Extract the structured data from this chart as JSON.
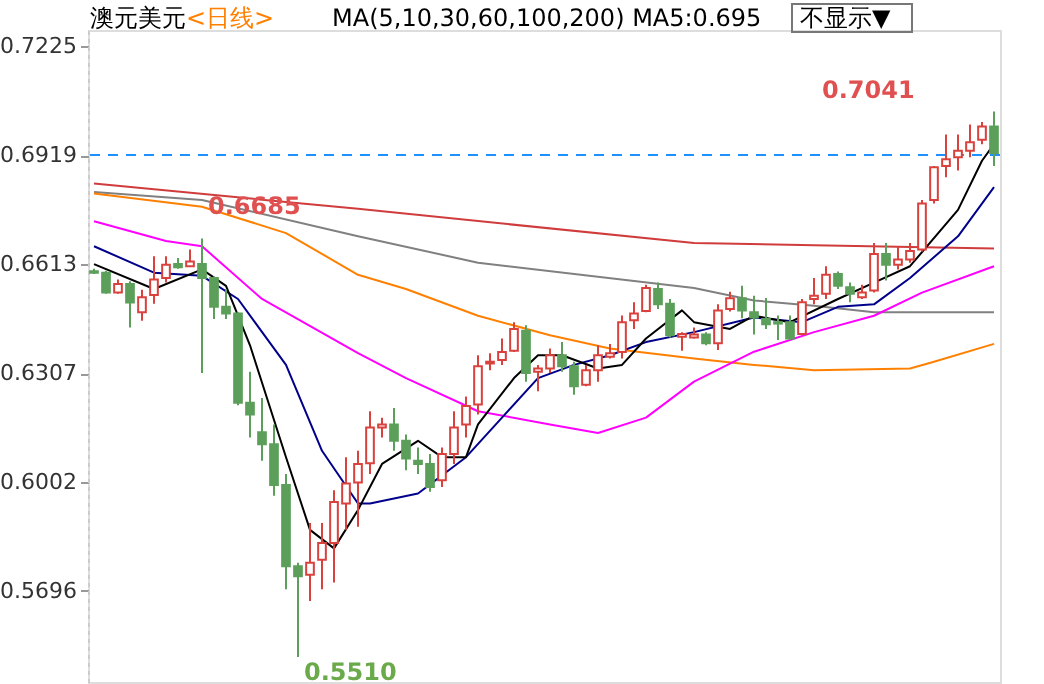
{
  "chart_data": {
    "type": "candlestick",
    "title": "澳元美元",
    "subtitle": "<日线>",
    "annotations": [
      "MA(5,10,30,60,100,200) MA5:0.695",
      "不显示▼",
      "0.7041",
      "0.6685",
      "0.5510"
    ],
    "categories": [
      null,
      null,
      null,
      null,
      null,
      null,
      null,
      null,
      null,
      null,
      null,
      null,
      null,
      null,
      null,
      null,
      null,
      null,
      null,
      null,
      null,
      null,
      null,
      null,
      null,
      null,
      null,
      null,
      null,
      null,
      null,
      null,
      null,
      null,
      null,
      null,
      null,
      null,
      null,
      null,
      null,
      null,
      null,
      null,
      null,
      null,
      null,
      null,
      null,
      null,
      null,
      null,
      null,
      null,
      null,
      null,
      null,
      null,
      null,
      null,
      null,
      null,
      null,
      null,
      null,
      null,
      null,
      null,
      null,
      null,
      null,
      null,
      null,
      null,
      null,
      null
    ],
    "ohlc": [
      [
        0.6593,
        0.66,
        0.6585,
        0.6589
      ],
      [
        0.6589,
        0.6594,
        0.653,
        0.6533
      ],
      [
        0.6533,
        0.657,
        0.653,
        0.6557
      ],
      [
        0.6557,
        0.6565,
        0.6435,
        0.6505
      ],
      [
        0.6478,
        0.6541,
        0.6454,
        0.652
      ],
      [
        0.6526,
        0.6635,
        0.6502,
        0.657
      ],
      [
        0.6574,
        0.6635,
        0.6561,
        0.6611
      ],
      [
        0.6613,
        0.663,
        0.66,
        0.6604
      ],
      [
        0.6607,
        0.6654,
        0.6607,
        0.662
      ],
      [
        0.6613,
        0.6685,
        0.6307,
        0.6574
      ],
      [
        0.6574,
        0.6578,
        0.6459,
        0.6493
      ],
      [
        0.6493,
        0.6543,
        0.6459,
        0.6474
      ],
      [
        0.6474,
        0.6478,
        0.6217,
        0.6224
      ],
      [
        0.6224,
        0.6311,
        0.6126,
        0.6191
      ],
      [
        0.6141,
        0.6237,
        0.6061,
        0.6107
      ],
      [
        0.6107,
        0.6163,
        0.5963,
        0.5993
      ],
      [
        0.5993,
        0.6024,
        0.57,
        0.5765
      ],
      [
        0.5765,
        0.5775,
        0.551,
        0.5737
      ],
      [
        0.5741,
        0.5886,
        0.5667,
        0.5775
      ],
      [
        0.5783,
        0.5886,
        0.57,
        0.583
      ],
      [
        0.583,
        0.5978,
        0.5719,
        0.5945
      ],
      [
        0.5941,
        0.6071,
        0.5867,
        0.5997
      ],
      [
        0.6,
        0.6089,
        0.5876,
        0.6052
      ],
      [
        0.6054,
        0.62,
        0.6024,
        0.6154
      ],
      [
        0.6154,
        0.6182,
        0.6126,
        0.6163
      ],
      [
        0.6163,
        0.6209,
        0.6089,
        0.6117
      ],
      [
        0.6117,
        0.6135,
        0.6034,
        0.6067
      ],
      [
        0.6061,
        0.6098,
        0.6024,
        0.6052
      ],
      [
        0.6052,
        0.608,
        0.5974,
        0.5987
      ],
      [
        0.6006,
        0.6098,
        0.5987,
        0.608
      ],
      [
        0.608,
        0.62,
        0.6052,
        0.6154
      ],
      [
        0.6163,
        0.6241,
        0.6126,
        0.6215
      ],
      [
        0.6219,
        0.6357,
        0.6191,
        0.6326
      ],
      [
        0.6334,
        0.6363,
        0.6315,
        0.6339
      ],
      [
        0.6344,
        0.6404,
        0.633,
        0.6366
      ],
      [
        0.637,
        0.645,
        0.6366,
        0.6431
      ],
      [
        0.6426,
        0.6441,
        0.6283,
        0.6307
      ],
      [
        0.6311,
        0.633,
        0.6256,
        0.632
      ],
      [
        0.632,
        0.6376,
        0.6307,
        0.6357
      ],
      [
        0.6357,
        0.6394,
        0.6311,
        0.6326
      ],
      [
        0.6326,
        0.6339,
        0.6246,
        0.627
      ],
      [
        0.6274,
        0.633,
        0.627,
        0.6315
      ],
      [
        0.6315,
        0.6385,
        0.6283,
        0.6357
      ],
      [
        0.6353,
        0.6389,
        0.6348,
        0.6363
      ],
      [
        0.6366,
        0.6469,
        0.6348,
        0.645
      ],
      [
        0.6455,
        0.6506,
        0.6431,
        0.6474
      ],
      [
        0.6481,
        0.6555,
        0.6478,
        0.6546
      ],
      [
        0.6543,
        0.6561,
        0.6487,
        0.65
      ],
      [
        0.6502,
        0.6515,
        0.6407,
        0.6413
      ],
      [
        0.6409,
        0.6422,
        0.637,
        0.6417
      ],
      [
        0.6407,
        0.6435,
        0.6404,
        0.6415
      ],
      [
        0.6415,
        0.6422,
        0.6385,
        0.6391
      ],
      [
        0.6391,
        0.65,
        0.6372,
        0.6483
      ],
      [
        0.6487,
        0.6535,
        0.648,
        0.6517
      ],
      [
        0.6517,
        0.6552,
        0.6461,
        0.6483
      ],
      [
        0.6478,
        0.6524,
        0.6415,
        0.6463
      ],
      [
        0.6459,
        0.6518,
        0.6431,
        0.6444
      ],
      [
        0.645,
        0.6469,
        0.64,
        0.6446
      ],
      [
        0.645,
        0.6469,
        0.64,
        0.6404
      ],
      [
        0.6417,
        0.6515,
        0.6413,
        0.6506
      ],
      [
        0.6515,
        0.6574,
        0.65,
        0.6524
      ],
      [
        0.653,
        0.6607,
        0.6515,
        0.6583
      ],
      [
        0.6585,
        0.6592,
        0.6543,
        0.6552
      ],
      [
        0.6548,
        0.6561,
        0.6506,
        0.653
      ],
      [
        0.652,
        0.6555,
        0.6515,
        0.6533
      ],
      [
        0.6539,
        0.6672,
        0.6533,
        0.6641
      ],
      [
        0.6641,
        0.6672,
        0.6567,
        0.6611
      ],
      [
        0.6611,
        0.6663,
        0.6598,
        0.6626
      ],
      [
        0.6626,
        0.6672,
        0.6617,
        0.665
      ],
      [
        0.6654,
        0.6793,
        0.6648,
        0.6783
      ],
      [
        0.6793,
        0.6888,
        0.6783,
        0.6885
      ],
      [
        0.6888,
        0.6977,
        0.6857,
        0.6907
      ],
      [
        0.6913,
        0.6977,
        0.6876,
        0.6931
      ],
      [
        0.6931,
        0.7005,
        0.6913,
        0.6955
      ],
      [
        0.6962,
        0.7012,
        0.6949,
        0.6999
      ],
      [
        0.6999,
        0.7041,
        0.6888,
        0.6925
      ]
    ],
    "colors": [
      "#5b9f5a",
      "#5b9f5a",
      "#d9413d",
      "#5b9f5a",
      "#d9413d",
      "#d9413d",
      "#d9413d",
      "#5b9f5a",
      "#d9413d",
      "#5b9f5a",
      "#5b9f5a",
      "#5b9f5a",
      "#5b9f5a",
      "#5b9f5a",
      "#5b9f5a",
      "#5b9f5a",
      "#5b9f5a",
      "#5b9f5a",
      "#d9413d",
      "#d9413d",
      "#d9413d",
      "#d9413d",
      "#d9413d",
      "#d9413d",
      "#d9413d",
      "#5b9f5a",
      "#5b9f5a",
      "#5b9f5a",
      "#5b9f5a",
      "#d9413d",
      "#d9413d",
      "#d9413d",
      "#d9413d",
      "#d9413d",
      "#d9413d",
      "#d9413d",
      "#5b9f5a",
      "#d9413d",
      "#d9413d",
      "#5b9f5a",
      "#5b9f5a",
      "#d9413d",
      "#d9413d",
      "#d9413d",
      "#d9413d",
      "#d9413d",
      "#d9413d",
      "#5b9f5a",
      "#5b9f5a",
      "#d9413d",
      "#d9413d",
      "#5b9f5a",
      "#d9413d",
      "#d9413d",
      "#5b9f5a",
      "#5b9f5a",
      "#5b9f5a",
      "#5b9f5a",
      "#5b9f5a",
      "#d9413d",
      "#d9413d",
      "#d9413d",
      "#5b9f5a",
      "#5b9f5a",
      "#d9413d",
      "#d9413d",
      "#5b9f5a",
      "#d9413d",
      "#d9413d",
      "#d9413d",
      "#d9413d",
      "#d9413d",
      "#d9413d",
      "#d9413d",
      "#d9413d",
      "#5b9f5a"
    ],
    "series": [
      {
        "type": "line",
        "color": "#d03c3c",
        "values": [
          0.6839,
          null,
          null,
          null,
          null,
          null,
          null,
          null,
          null,
          null,
          null,
          null,
          null,
          null,
          null,
          null,
          null,
          null,
          null,
          null,
          null,
          null,
          0.6768,
          null,
          null,
          null,
          null,
          null,
          null,
          null,
          null,
          null,
          null,
          null,
          null,
          null,
          null,
          null,
          null,
          null,
          null,
          null,
          null,
          null,
          null,
          null,
          null,
          null,
          null,
          null,
          0.6672,
          null,
          null,
          null,
          null,
          null,
          null,
          null,
          null,
          null,
          0.6666,
          null,
          null,
          null,
          null,
          null,
          null,
          null,
          null,
          null,
          null,
          null,
          null,
          null,
          null,
          0.6657
        ]
      },
      {
        "type": "line",
        "color": "#808080",
        "values": [
          0.6815,
          null,
          null,
          null,
          null,
          null,
          null,
          null,
          null,
          0.6793,
          null,
          null,
          null,
          null,
          null,
          null,
          null,
          null,
          null,
          null,
          null,
          null,
          0.6691,
          null,
          null,
          null,
          null,
          null,
          null,
          null,
          null,
          null,
          0.6617,
          null,
          null,
          null,
          null,
          null,
          null,
          null,
          null,
          null,
          null,
          null,
          null,
          null,
          null,
          null,
          null,
          null,
          0.6546,
          null,
          null,
          null,
          null,
          0.6511,
          null,
          null,
          null,
          null,
          0.6496,
          null,
          null,
          null,
          null,
          0.6478,
          null,
          null,
          null,
          null,
          null,
          null,
          null,
          null,
          null,
          0.6478
        ]
      },
      {
        "type": "line",
        "color": "#ff8000",
        "values": [
          0.6811,
          null,
          null,
          null,
          null,
          null,
          null,
          null,
          null,
          0.6774,
          null,
          null,
          null,
          null,
          null,
          null,
          0.67,
          null,
          null,
          null,
          null,
          null,
          0.6583,
          null,
          null,
          null,
          0.6543,
          null,
          null,
          null,
          null,
          null,
          0.6468,
          null,
          null,
          null,
          null,
          null,
          0.6413,
          null,
          null,
          null,
          null,
          0.6376,
          null,
          null,
          null,
          null,
          null,
          null,
          0.6348,
          null,
          null,
          null,
          null,
          0.633,
          null,
          null,
          null,
          null,
          0.6315,
          null,
          null,
          null,
          null,
          null,
          null,
          null,
          0.632,
          null,
          0.6339,
          null,
          null,
          null,
          null,
          0.6389
        ]
      },
      {
        "type": "line",
        "color": "#ff00ff",
        "values": [
          0.6733,
          null,
          null,
          null,
          null,
          null,
          0.6678,
          null,
          null,
          0.6663,
          null,
          null,
          null,
          null,
          0.6515,
          null,
          null,
          null,
          null,
          null,
          null,
          null,
          0.6363,
          null,
          null,
          null,
          0.6293,
          null,
          null,
          null,
          null,
          null,
          0.62,
          null,
          null,
          null,
          null,
          null,
          0.6163,
          null,
          null,
          null,
          0.6139,
          null,
          null,
          null,
          0.6182,
          null,
          null,
          null,
          0.6283,
          null,
          null,
          null,
          null,
          0.6367,
          null,
          null,
          null,
          null,
          0.6422,
          null,
          null,
          null,
          null,
          0.6468,
          null,
          null,
          null,
          0.6533,
          null,
          null,
          null,
          null,
          null,
          0.6607
        ]
      },
      {
        "type": "line",
        "color": "#00008b",
        "values": [
          0.6663,
          null,
          null,
          null,
          null,
          0.6589,
          null,
          null,
          null,
          0.658,
          null,
          null,
          0.6515,
          null,
          null,
          null,
          0.633,
          null,
          null,
          0.6089,
          null,
          null,
          0.5941,
          0.5941,
          null,
          null,
          null,
          0.5969,
          null,
          null,
          null,
          0.6071,
          null,
          null,
          0.6182,
          null,
          null,
          0.6293,
          null,
          null,
          0.633,
          null,
          null,
          0.6357,
          null,
          null,
          0.6394,
          null,
          null,
          null,
          0.6422,
          null,
          null,
          null,
          null,
          0.6463,
          null,
          null,
          null,
          0.645,
          null,
          null,
          0.6493,
          null,
          null,
          0.65,
          null,
          null,
          0.6574,
          null,
          null,
          null,
          0.6691,
          null,
          null,
          0.6829
        ]
      },
      {
        "type": "line",
        "color": "#000000",
        "values": [
          0.6613,
          null,
          null,
          null,
          null,
          0.6543,
          null,
          null,
          null,
          0.6598,
          null,
          0.6552,
          null,
          0.6385,
          null,
          null,
          0.6071,
          null,
          0.5867,
          null,
          0.5815,
          null,
          0.5923,
          null,
          0.6052,
          null,
          null,
          0.6117,
          null,
          0.6071,
          null,
          0.6071,
          0.6163,
          null,
          null,
          0.6293,
          null,
          0.6357,
          null,
          0.6357,
          null,
          null,
          0.632,
          null,
          0.633,
          null,
          0.6404,
          null,
          null,
          0.6483,
          0.645,
          null,
          null,
          0.6431,
          null,
          0.6468,
          null,
          null,
          0.645,
          null,
          null,
          null,
          0.6515,
          null,
          null,
          0.6561,
          null,
          null,
          0.6607,
          null,
          null,
          null,
          0.6765,
          null,
          0.6903,
          0.695
        ]
      }
    ],
    "ylim": [
      0.544,
      0.727
    ],
    "yticks": [
      0.5696,
      0.6002,
      0.6307,
      0.6613,
      0.6919,
      0.7225
    ],
    "ref_lines": [
      {
        "axis": "y",
        "value": 0.6919,
        "color": "#1e90ff",
        "line_style": "dashed"
      }
    ],
    "tick_labels": "y"
  }
}
